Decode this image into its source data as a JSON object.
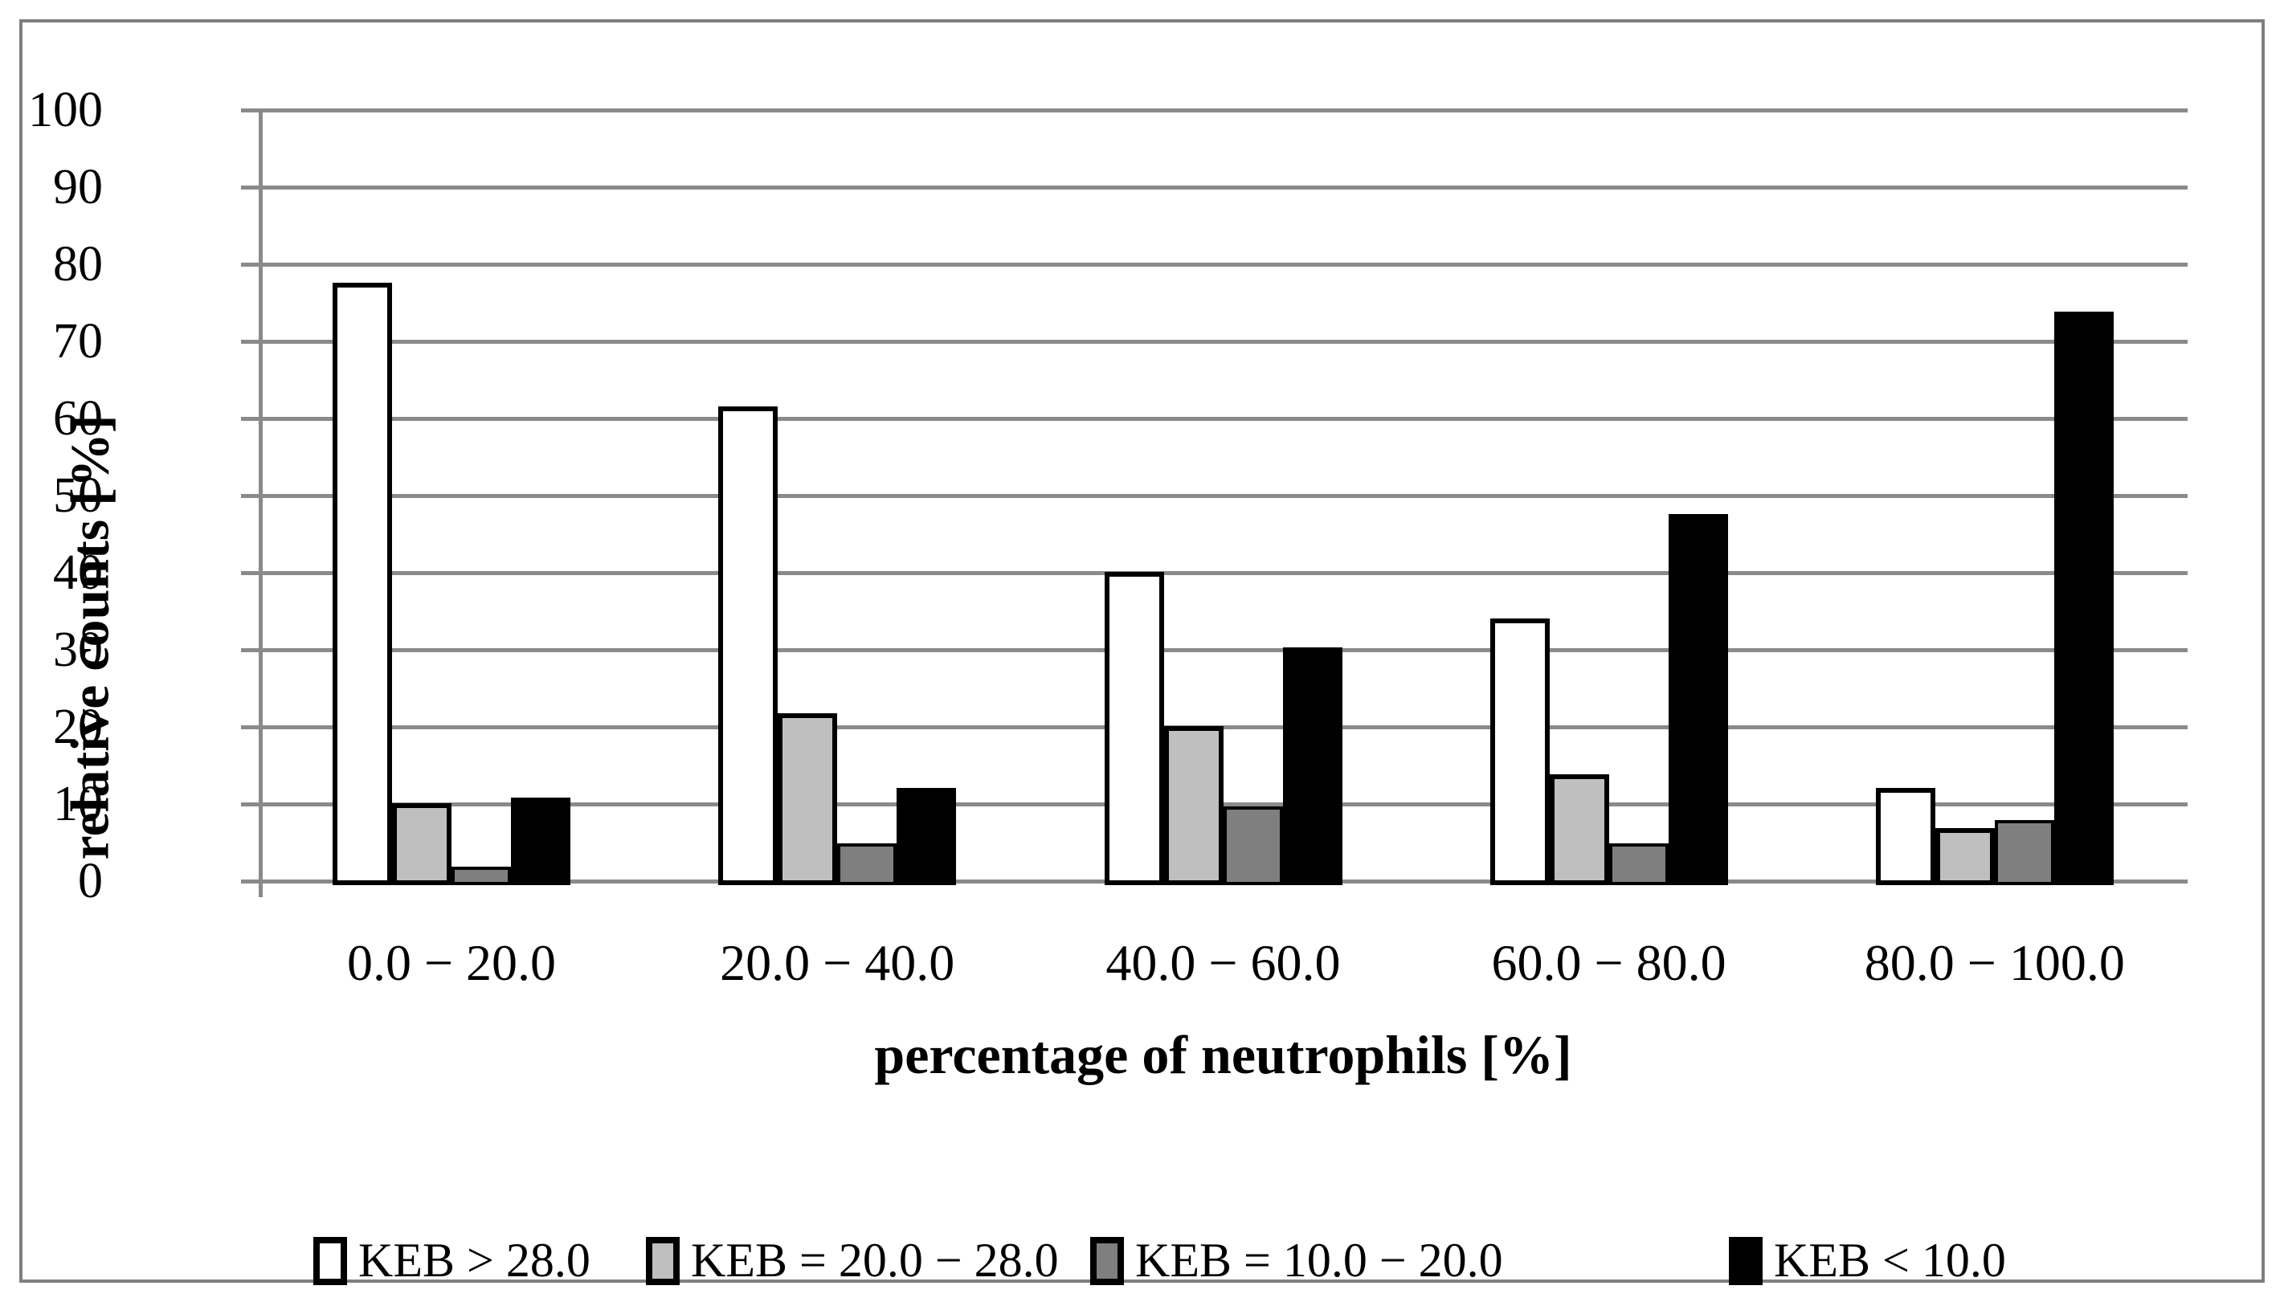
{
  "figure": {
    "background": "#ffffff",
    "frame_color": "#7f7f7f",
    "gridline_color": "#8a8a8a"
  },
  "chart_data": {
    "type": "bar",
    "title": "",
    "xlabel": "percentage of neutrophils [%]",
    "ylabel": "relative counts [%]",
    "ylim": [
      0,
      100
    ],
    "ytick_step": 10,
    "yticks": [
      "100",
      "90",
      "80",
      "70",
      "60",
      "50",
      "40",
      "30",
      "20",
      "10",
      "0"
    ],
    "grid": true,
    "legend_position": "bottom",
    "categories": [
      "0.0 − 20.0",
      "20.0  −  40.0",
      "40.0  −  60.0",
      "60.0  −  80.0",
      "80.0  −  100.0"
    ],
    "series": [
      {
        "name": "KEB > 28.0",
        "color": "#ffffff",
        "border": "#000000",
        "border_px": 6,
        "values": [
          77.5,
          61.5,
          40.0,
          34.0,
          12.0
        ]
      },
      {
        "name": "KEB = 20.0  −  28.0",
        "color": "#bfbfbf",
        "border": "#000000",
        "border_px": 6,
        "values": [
          10.0,
          21.7,
          20.0,
          13.7,
          6.8
        ]
      },
      {
        "name": "KEB = 10.0  −  20.0",
        "color": "#7f7f7f",
        "border": "#000000",
        "border_px": 4,
        "values": [
          2.0,
          5.0,
          9.8,
          5.0,
          8.0
        ]
      },
      {
        "name": "KEB < 10.0",
        "color": "#000000",
        "border": "#000000",
        "border_px": 6,
        "values": [
          10.7,
          12.0,
          30.2,
          47.5,
          73.8
        ]
      }
    ]
  },
  "layout_hints": {
    "legend_item_lefts": [
      68,
      482,
      1035,
      1830
    ]
  }
}
